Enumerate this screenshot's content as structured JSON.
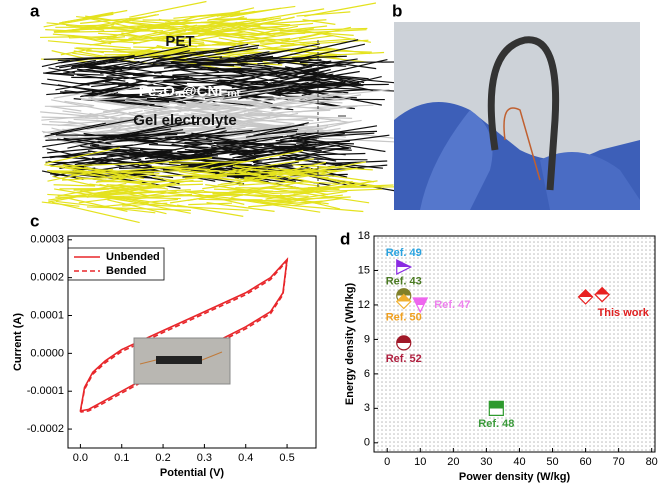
{
  "panels": {
    "a": "a",
    "b": "b",
    "c": "c",
    "d": "d"
  },
  "illustration": {
    "layers": [
      "PET",
      "Fe₃O₄@CNFₘₜ",
      "Gel electrolyte"
    ]
  },
  "chart_data": [
    {
      "type": "line",
      "xlabel": "Potential (V)",
      "ylabel": "Current (A)",
      "xlim": [
        -0.03,
        0.57
      ],
      "ylim": [
        -0.00025,
        0.00031
      ],
      "xticks": [
        {
          "value": 0,
          "label": "0.0"
        },
        0.1,
        0.2,
        0.3,
        0.4,
        0.5
      ],
      "yticks": [
        -0.0002,
        -0.0001,
        {
          "value": 0,
          "label": "0.0000"
        },
        0.0001,
        0.0002,
        0.0003
      ],
      "legend": "upper left",
      "x": [
        0,
        0.01,
        0.03,
        0.06,
        0.1,
        0.2,
        0.3,
        0.4,
        0.46,
        0.5,
        0.49,
        0.46,
        0.4,
        0.3,
        0.2,
        0.1,
        0.05,
        0.02,
        0
      ],
      "series": [
        {
          "name": "Unbended",
          "color": "#e8262a",
          "dash": false,
          "values": [
            -0.000152,
            -9e-05,
            -5e-05,
            -2e-05,
            1e-05,
            6e-05,
            0.00011,
            0.00016,
            0.0002,
            0.000248,
            0.00016,
            0.00011,
            7e-05,
            1.5e-05,
            -4e-05,
            -0.0001,
            -0.00013,
            -0.000148,
            -0.000152
          ]
        },
        {
          "name": "Bended",
          "color": "#e8262a",
          "dash": true,
          "values": [
            -0.000155,
            -9.5e-05,
            -5.5e-05,
            -2.5e-05,
            5e-06,
            5.5e-05,
            0.000105,
            0.000155,
            0.000195,
            0.000245,
            0.000155,
            0.000105,
            6.5e-05,
            1e-05,
            -4.5e-05,
            -0.000105,
            -0.000135,
            -0.000152,
            -0.000155
          ]
        }
      ]
    },
    {
      "type": "scatter",
      "xlabel": "Power density (W/kg)",
      "ylabel": "Energy density (Wh/kg)",
      "xlim": [
        -4,
        81
      ],
      "ylim": [
        -0.8,
        18
      ],
      "xticks": [
        0,
        10,
        20,
        30,
        40,
        50,
        60,
        70,
        80
      ],
      "yticks": [
        0,
        3,
        6,
        9,
        12,
        15,
        18
      ],
      "series": [
        {
          "name": "Ref. 49",
          "color": "#8a2be2",
          "label_color": "#2aa3e0",
          "marker": "triangle-right",
          "x": [
            5
          ],
          "values": [
            15.3
          ]
        },
        {
          "name": "Ref. 43",
          "color": "#808028",
          "label_color": "#4a7a22",
          "marker": "circle",
          "x": [
            5
          ],
          "values": [
            12.8
          ]
        },
        {
          "name": "Ref. 47",
          "color": "#ee66ee",
          "label_color": "#ee82ee",
          "marker": "triangle-down",
          "x": [
            10
          ],
          "values": [
            12
          ]
        },
        {
          "name": "Ref. 50",
          "color": "#f0b030",
          "label_color": "#f0a020",
          "marker": "diamond",
          "x": [
            5
          ],
          "values": [
            12.3
          ]
        },
        {
          "name": "Ref. 52",
          "color": "#a01828",
          "label_color": "#b02040",
          "marker": "circle",
          "x": [
            5
          ],
          "values": [
            8.7
          ]
        },
        {
          "name": "Ref. 48",
          "color": "#2e9a2e",
          "label_color": "#3a9a3a",
          "marker": "square",
          "x": [
            33
          ],
          "values": [
            3
          ]
        },
        {
          "name": "This work",
          "color": "#e82020",
          "label_color": "#e02020",
          "marker": "diamond",
          "x": [
            60,
            65
          ],
          "values": [
            12.7,
            12.9
          ]
        }
      ]
    }
  ]
}
